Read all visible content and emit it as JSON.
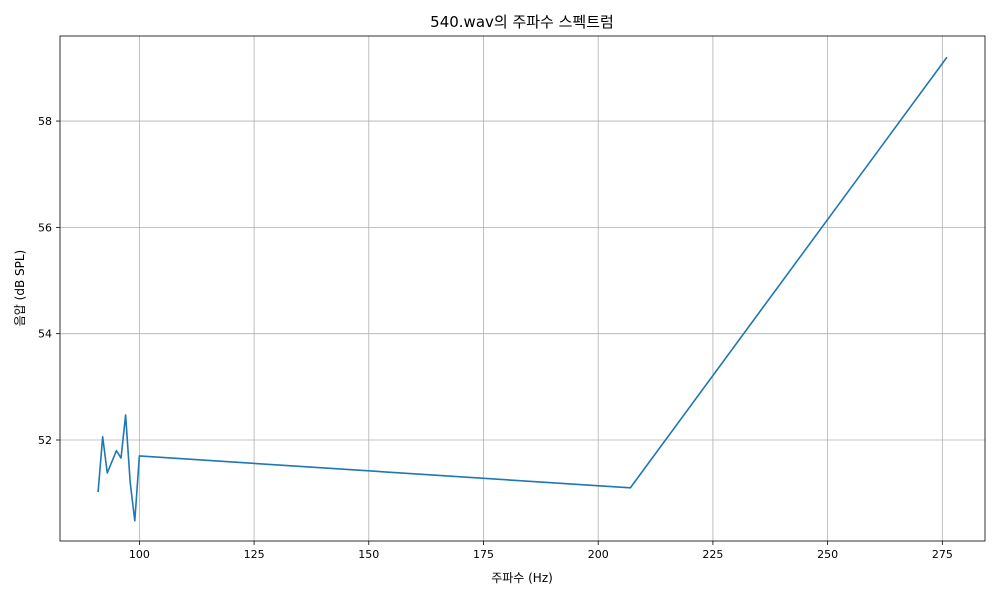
{
  "chart_data": {
    "type": "line",
    "title": "540.wav의 주파수 스펙트럼",
    "xlabel": "주파수 (Hz)",
    "ylabel": "음압 (dB SPL)",
    "xlim": [
      82.7,
      284.3
    ],
    "ylim": [
      50.1,
      59.6
    ],
    "xticks": [
      100,
      125,
      150,
      175,
      200,
      225,
      250,
      275
    ],
    "yticks": [
      52,
      54,
      56,
      58
    ],
    "grid": true,
    "series": [
      {
        "color": "#1f77b4",
        "x": [
          91,
          92,
          93,
          95,
          96,
          97,
          98,
          99,
          100,
          207,
          276
        ],
        "y": [
          51.02,
          52.06,
          51.38,
          51.8,
          51.66,
          52.47,
          51.2,
          50.48,
          51.7,
          51.1,
          59.2
        ]
      }
    ]
  }
}
